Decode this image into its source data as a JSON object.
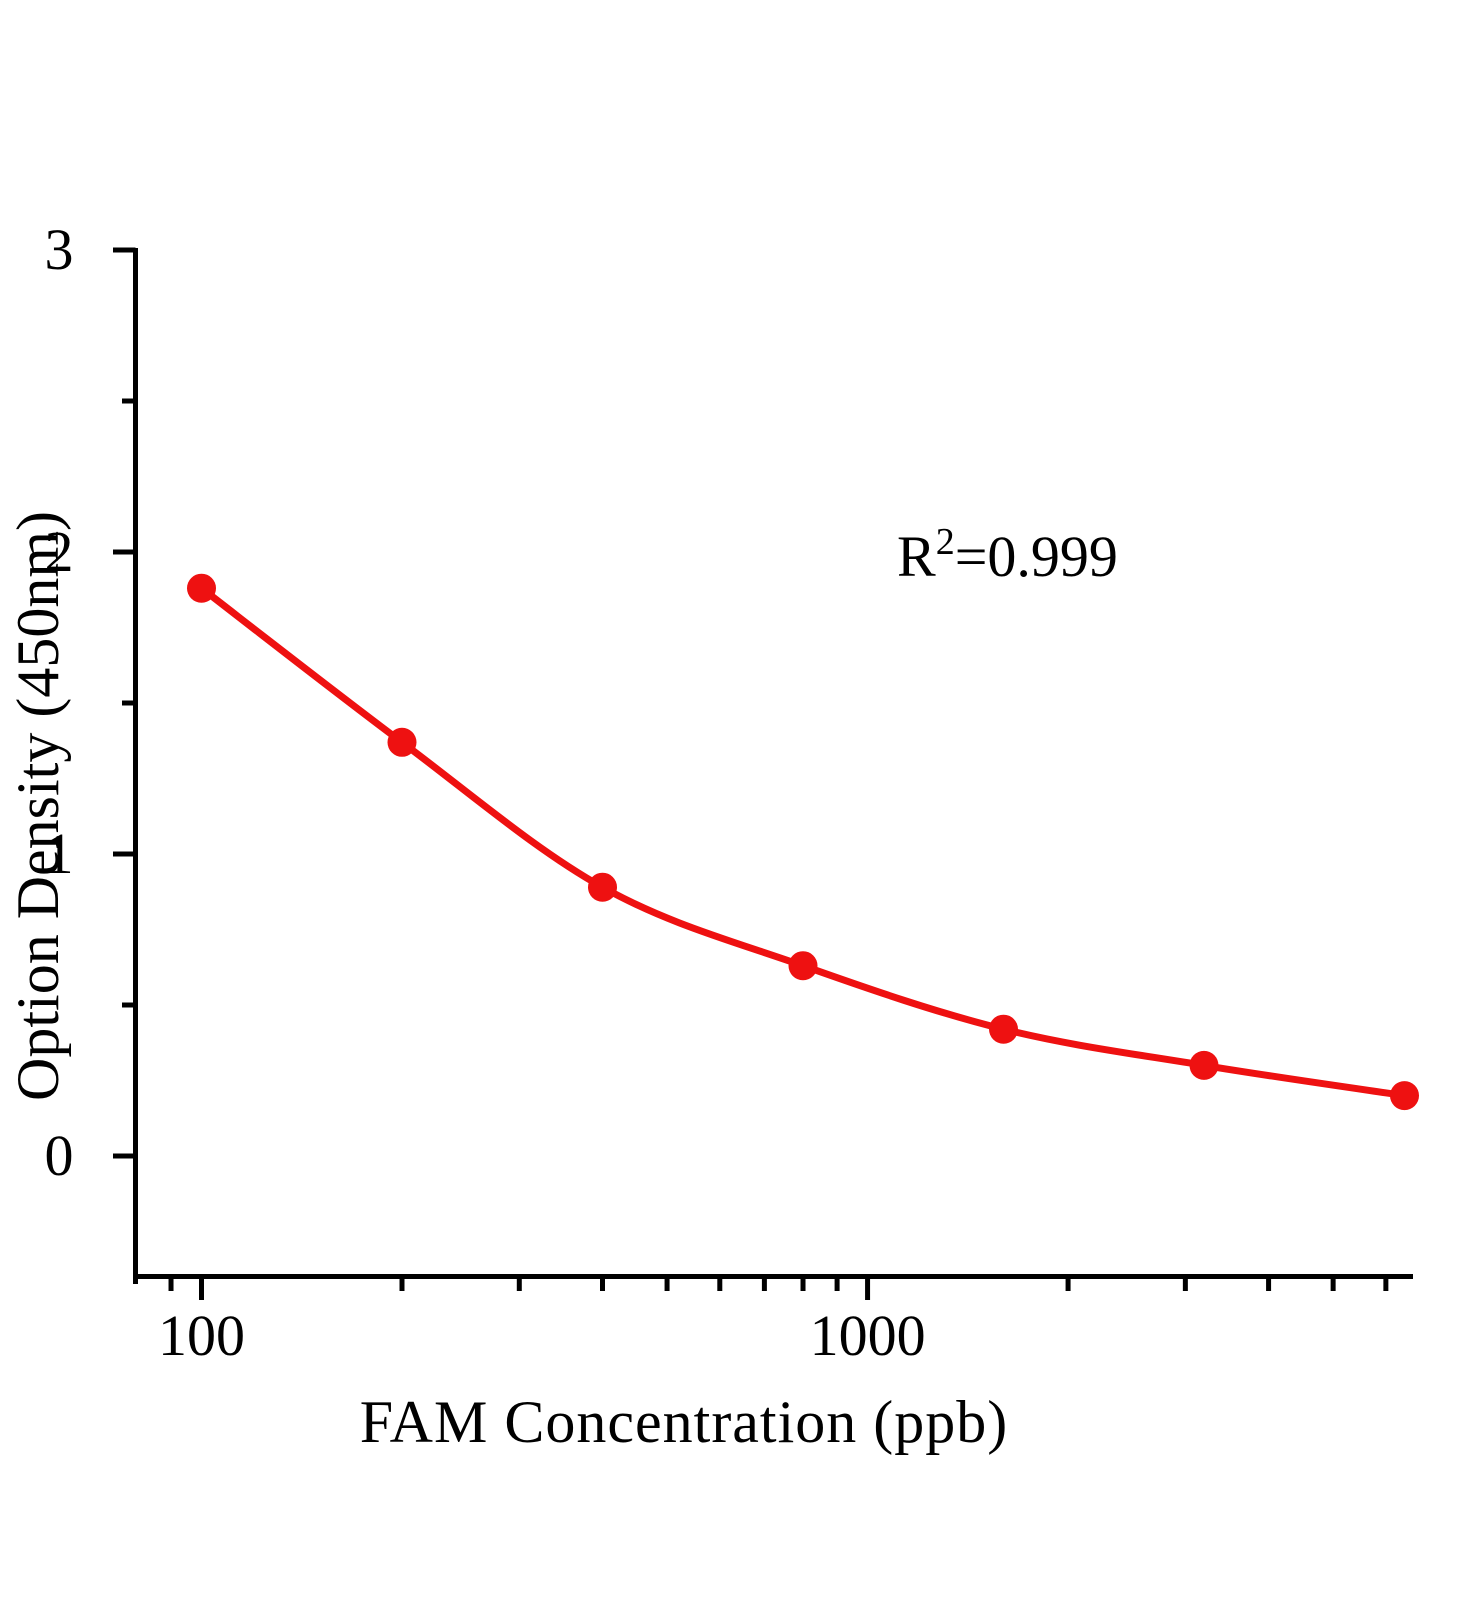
{
  "figure": {
    "background": "#ffffff",
    "text_color": "#000000"
  },
  "chart_data": {
    "type": "scatter",
    "subtype": "scatter-with-smooth-line",
    "title": "",
    "xlabel": "FAM  Concentration (ppb)",
    "ylabel": "Option Density (450nm)",
    "annotation": {
      "base": "R",
      "sup": "2",
      "rest": "=0.999",
      "text": "R2=0.999"
    },
    "legend": "none",
    "grid": false,
    "x_axis": {
      "scale": "log",
      "range": [
        79.6,
        6590
      ],
      "major_ticks": [
        {
          "value": 100,
          "label": "100"
        },
        {
          "value": 1000,
          "label": "1000"
        }
      ],
      "minor_ticks": [
        90,
        200,
        300,
        400,
        500,
        600,
        700,
        800,
        900,
        2000,
        3000,
        4000,
        5000,
        6000
      ]
    },
    "y_axis": {
      "scale": "linear",
      "range": [
        0,
        3
      ],
      "major_ticks": [
        {
          "value": 3,
          "label": "3"
        },
        {
          "value": 2,
          "label": "2"
        },
        {
          "value": 1,
          "label": "1"
        },
        {
          "value": 0,
          "label": "0"
        }
      ],
      "minor_ticks": [
        2.5,
        1.5,
        0.5
      ]
    },
    "series": [
      {
        "color": "#EE1111",
        "marker": "circle",
        "line": "smooth",
        "points": [
          {
            "x": 100,
            "y": 1.88
          },
          {
            "x": 200,
            "y": 1.37
          },
          {
            "x": 400,
            "y": 0.89
          },
          {
            "x": 800,
            "y": 0.63
          },
          {
            "x": 1600,
            "y": 0.42
          },
          {
            "x": 3200,
            "y": 0.3
          },
          {
            "x": 6400,
            "y": 0.2
          }
        ]
      }
    ]
  }
}
